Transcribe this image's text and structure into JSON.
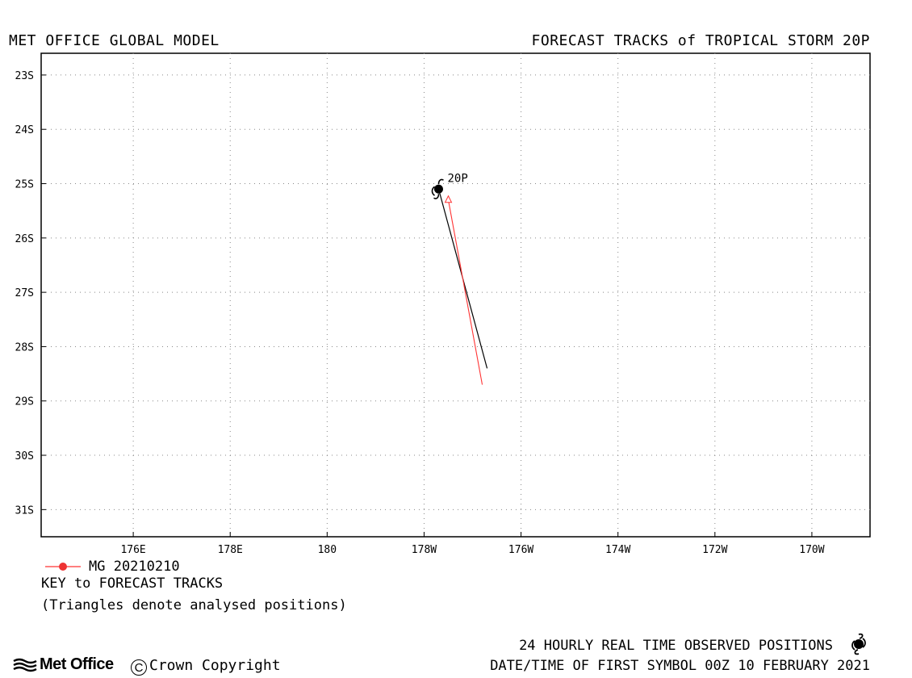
{
  "header": {
    "left": "MET OFFICE GLOBAL MODEL",
    "right": "FORECAST TRACKS of TROPICAL STORM 20P"
  },
  "map": {
    "lat_labels": [
      "23S",
      "24S",
      "25S",
      "26S",
      "27S",
      "28S",
      "29S",
      "30S",
      "31S"
    ],
    "lon_labels": [
      "176E",
      "178E",
      "180",
      "178W",
      "176W",
      "174W",
      "172W",
      "170W"
    ],
    "lat_range": [
      -31.5,
      -22.6
    ],
    "lon_range": [
      174.1,
      191.2
    ],
    "grid": "dotted",
    "storm_label": "20P",
    "storm_position": {
      "lat": -25.1,
      "lon": 182.3
    },
    "observed_track": {
      "name": "observed",
      "color": "#000000",
      "points": [
        {
          "lat": -25.1,
          "lon": 182.3
        },
        {
          "lat": -28.4,
          "lon": 183.3
        }
      ]
    },
    "forecast_tracks": [
      {
        "name": "MG 20210210",
        "color": "#ff3333",
        "points": [
          {
            "lat": -25.3,
            "lon": 182.5
          },
          {
            "lat": -28.7,
            "lon": 183.2
          }
        ],
        "analysed_marker": "triangle"
      }
    ]
  },
  "key": {
    "track_label": "MG 20210210",
    "title": "KEY to FORECAST TRACKS",
    "note": "(Triangles denote analysed positions)"
  },
  "footer": {
    "observed_positions": "24 HOURLY REAL TIME OBSERVED POSITIONS",
    "first_symbol": "DATE/TIME OF FIRST SYMBOL 00Z 10 FEBRUARY 2021",
    "logo_text": "Met Office",
    "copyright_symbol": "C",
    "copyright": "Crown Copyright"
  },
  "icons": {
    "storm": "tropical-storm-symbol-icon",
    "logo": "met-office-wave-icon"
  }
}
